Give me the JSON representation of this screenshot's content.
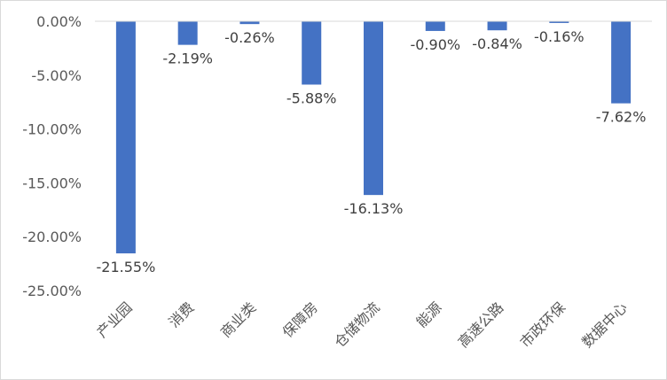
{
  "chart_data": {
    "type": "bar",
    "title": "",
    "xlabel": "",
    "ylabel": "",
    "categories": [
      "产业园",
      "消费",
      "商业类",
      "保障房",
      "仓储物流",
      "能源",
      "高速公路",
      "市政环保",
      "数据中心"
    ],
    "values": [
      -21.55,
      -2.19,
      -0.26,
      -5.88,
      -16.13,
      -0.9,
      -0.84,
      -0.16,
      -7.62
    ],
    "data_labels": [
      "-21.55%",
      "-2.19%",
      "-0.26%",
      "-5.88%",
      "-16.13%",
      "-0.90%",
      "-0.84%",
      "-0.16%",
      "-7.62%"
    ],
    "ylim": [
      -25,
      0
    ],
    "y_ticks": [
      0,
      -5,
      -10,
      -15,
      -20,
      -25
    ],
    "y_tick_labels": [
      "0.00%",
      "-5.00%",
      "-10.00%",
      "-15.00%",
      "-20.00%",
      "-25.00%"
    ],
    "grid": false,
    "legend": "none",
    "bar_color": "#4472C4",
    "axis_color": "#d9d9d9"
  }
}
